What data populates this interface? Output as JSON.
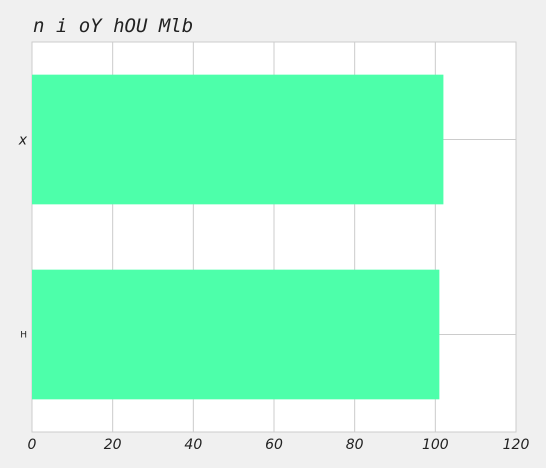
{
  "chart_data": {
    "type": "bar",
    "orientation": "horizontal",
    "title": "n i oY hOU Mlb",
    "categories": [
      "x",
      "H"
    ],
    "values": [
      102,
      101
    ],
    "xlim": [
      0,
      120
    ],
    "xticks": [
      "0",
      "20",
      "40",
      "60",
      "80",
      "100",
      "120"
    ],
    "grid": true,
    "bar_color": "#4dffaa",
    "plot_background": "#ffffff",
    "page_background": "#f0f0f0"
  }
}
